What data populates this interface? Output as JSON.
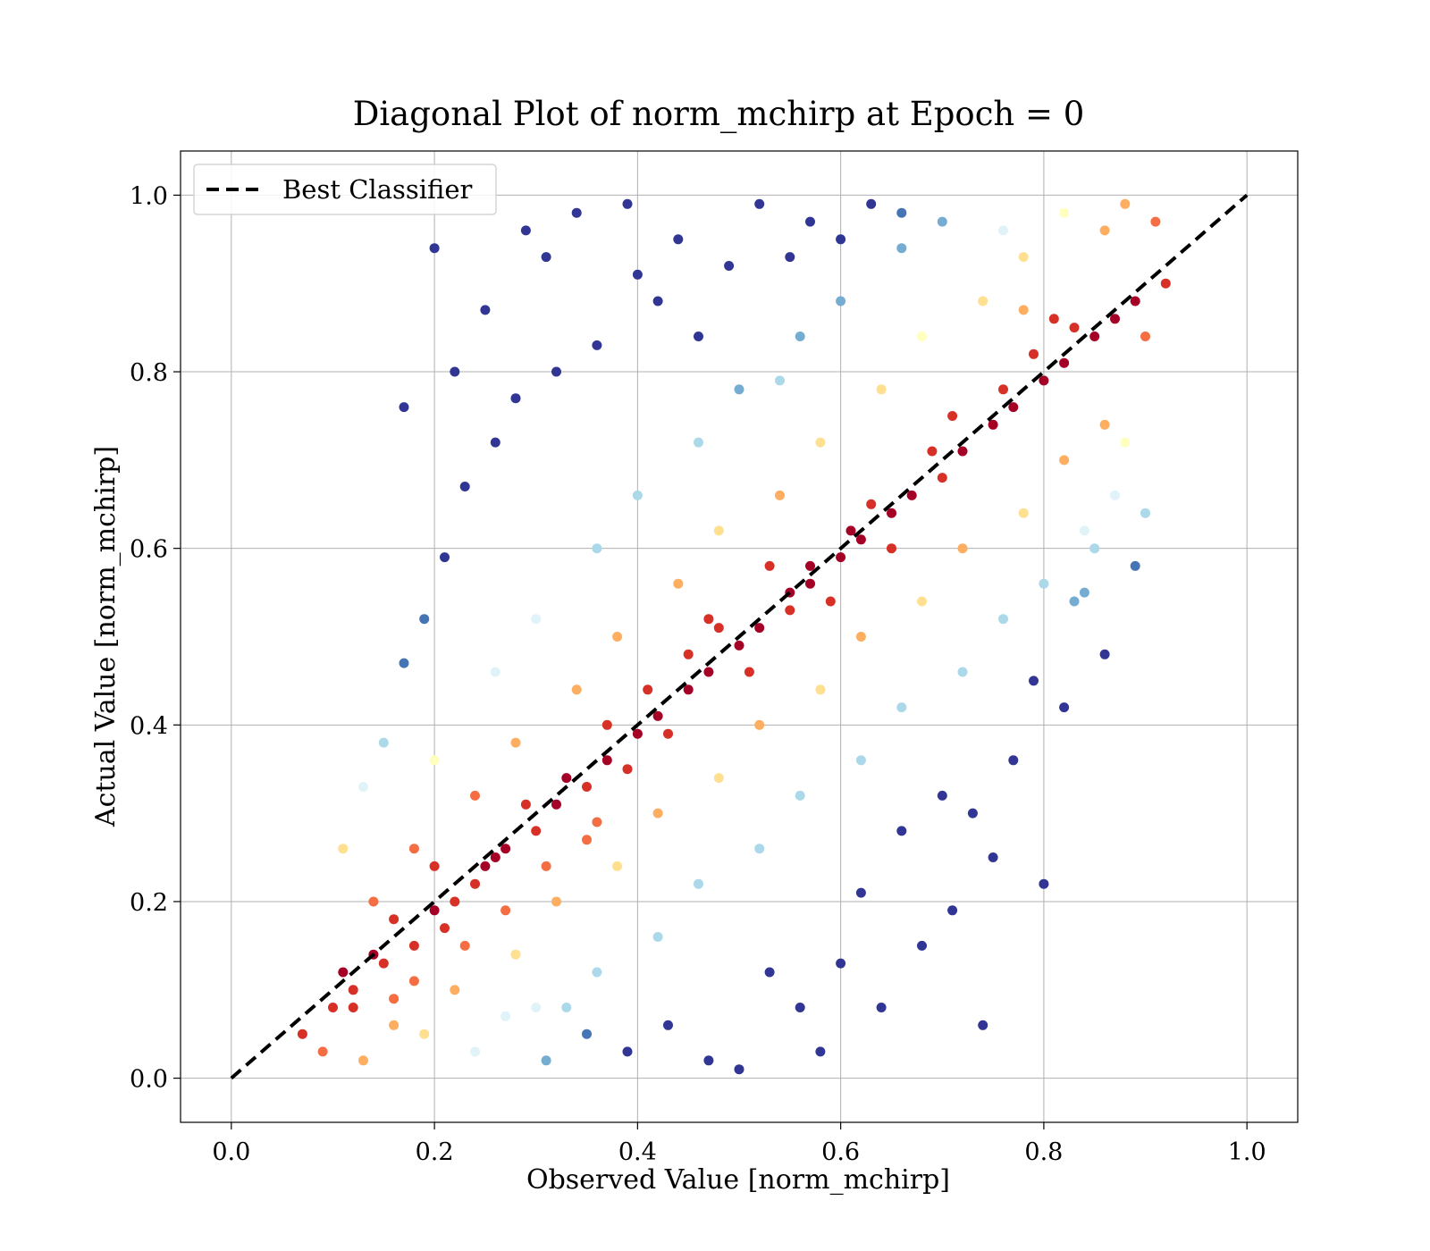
{
  "chart_data": {
    "type": "scatter",
    "title": "Diagonal Plot of norm_mchirp at Epoch = 0",
    "xlabel": "Observed Value [norm_mchirp]",
    "ylabel": "Actual Value [norm_mchirp]",
    "xlim": [
      -0.05,
      1.05
    ],
    "ylim": [
      -0.05,
      1.05
    ],
    "x_ticks": [
      "0.0",
      "0.2",
      "0.4",
      "0.6",
      "0.8",
      "1.0"
    ],
    "y_ticks": [
      "0.0",
      "0.2",
      "0.4",
      "0.6",
      "0.8",
      "1.0"
    ],
    "x_tick_values": [
      0.0,
      0.2,
      0.4,
      0.6,
      0.8,
      1.0
    ],
    "y_tick_values": [
      0.0,
      0.2,
      0.4,
      0.6,
      0.8,
      1.0
    ],
    "grid": true,
    "legend": {
      "position": "top-left",
      "entries": [
        "Best Classifier"
      ]
    },
    "reference_line": {
      "name": "Best Classifier",
      "style": "dashed",
      "color": "#000000",
      "x": [
        0.0,
        1.0
      ],
      "y": [
        0.0,
        1.0
      ]
    },
    "colormap": [
      "#313695",
      "#4575b4",
      "#74add1",
      "#abd9e9",
      "#e0f3f8",
      "#ffffbf",
      "#fee090",
      "#fdae61",
      "#f46d43",
      "#d73027",
      "#a50026"
    ],
    "series": [
      {
        "points": [
          [
            0.1,
            0.08
          ],
          [
            0.12,
            0.1
          ],
          [
            0.15,
            0.13
          ],
          [
            0.18,
            0.15
          ],
          [
            0.2,
            0.19
          ],
          [
            0.22,
            0.2
          ],
          [
            0.25,
            0.24
          ],
          [
            0.27,
            0.26
          ],
          [
            0.3,
            0.28
          ],
          [
            0.32,
            0.31
          ],
          [
            0.35,
            0.33
          ],
          [
            0.37,
            0.36
          ],
          [
            0.4,
            0.39
          ],
          [
            0.42,
            0.41
          ],
          [
            0.45,
            0.44
          ],
          [
            0.47,
            0.46
          ],
          [
            0.5,
            0.49
          ],
          [
            0.52,
            0.51
          ],
          [
            0.55,
            0.53
          ],
          [
            0.57,
            0.56
          ],
          [
            0.6,
            0.59
          ],
          [
            0.62,
            0.61
          ],
          [
            0.65,
            0.64
          ],
          [
            0.67,
            0.66
          ],
          [
            0.7,
            0.68
          ],
          [
            0.72,
            0.71
          ],
          [
            0.75,
            0.74
          ],
          [
            0.77,
            0.76
          ],
          [
            0.8,
            0.79
          ],
          [
            0.82,
            0.81
          ],
          [
            0.85,
            0.84
          ],
          [
            0.87,
            0.86
          ],
          [
            0.89,
            0.88
          ],
          [
            0.14,
            0.2
          ],
          [
            0.18,
            0.26
          ],
          [
            0.24,
            0.32
          ],
          [
            0.28,
            0.38
          ],
          [
            0.34,
            0.44
          ],
          [
            0.38,
            0.5
          ],
          [
            0.44,
            0.56
          ],
          [
            0.48,
            0.62
          ],
          [
            0.54,
            0.66
          ],
          [
            0.58,
            0.72
          ],
          [
            0.64,
            0.78
          ],
          [
            0.68,
            0.84
          ],
          [
            0.74,
            0.88
          ],
          [
            0.78,
            0.93
          ],
          [
            0.16,
            0.06
          ],
          [
            0.22,
            0.1
          ],
          [
            0.28,
            0.14
          ],
          [
            0.32,
            0.2
          ],
          [
            0.38,
            0.24
          ],
          [
            0.42,
            0.3
          ],
          [
            0.48,
            0.34
          ],
          [
            0.52,
            0.4
          ],
          [
            0.58,
            0.44
          ],
          [
            0.62,
            0.5
          ],
          [
            0.68,
            0.54
          ],
          [
            0.72,
            0.6
          ],
          [
            0.78,
            0.64
          ],
          [
            0.82,
            0.7
          ],
          [
            0.86,
            0.74
          ],
          [
            0.2,
            0.36
          ],
          [
            0.26,
            0.46
          ],
          [
            0.3,
            0.52
          ],
          [
            0.36,
            0.6
          ],
          [
            0.4,
            0.66
          ],
          [
            0.46,
            0.72
          ],
          [
            0.5,
            0.78
          ],
          [
            0.56,
            0.84
          ],
          [
            0.6,
            0.88
          ],
          [
            0.66,
            0.94
          ],
          [
            0.3,
            0.08
          ],
          [
            0.36,
            0.12
          ],
          [
            0.42,
            0.16
          ],
          [
            0.46,
            0.22
          ],
          [
            0.52,
            0.26
          ],
          [
            0.56,
            0.32
          ],
          [
            0.62,
            0.36
          ],
          [
            0.66,
            0.42
          ],
          [
            0.72,
            0.46
          ],
          [
            0.76,
            0.52
          ],
          [
            0.8,
            0.56
          ],
          [
            0.84,
            0.62
          ],
          [
            0.33,
            0.08
          ],
          [
            0.21,
            0.17
          ],
          [
            0.26,
            0.25
          ],
          [
            0.48,
            0.51
          ],
          [
            0.55,
            0.55
          ],
          [
            0.61,
            0.62
          ],
          [
            0.78,
            0.87
          ],
          [
            0.81,
            0.86
          ],
          [
            0.54,
            0.79
          ],
          [
            0.46,
            0.84
          ],
          [
            0.2,
            0.94
          ],
          [
            0.34,
            0.98
          ],
          [
            0.39,
            0.99
          ],
          [
            0.8,
            0.22
          ],
          [
            0.74,
            0.06
          ],
          [
            0.75,
            0.25
          ],
          [
            0.58,
            0.03
          ],
          [
            0.5,
            0.01
          ],
          [
            0.6,
            0.13
          ],
          [
            0.62,
            0.21
          ],
          [
            0.68,
            0.15
          ],
          [
            0.71,
            0.19
          ],
          [
            0.73,
            0.3
          ],
          [
            0.84,
            0.55
          ],
          [
            0.83,
            0.54
          ],
          [
            0.79,
            0.45
          ],
          [
            0.17,
            0.76
          ],
          [
            0.22,
            0.8
          ],
          [
            0.25,
            0.87
          ],
          [
            0.29,
            0.96
          ],
          [
            0.31,
            0.93
          ],
          [
            0.4,
            0.91
          ],
          [
            0.44,
            0.95
          ],
          [
            0.52,
            0.99
          ],
          [
            0.57,
            0.97
          ],
          [
            0.63,
            0.99
          ],
          [
            0.88,
            0.99
          ],
          [
            0.91,
            0.97
          ],
          [
            0.9,
            0.84
          ],
          [
            0.92,
            0.9
          ],
          [
            0.88,
            0.72
          ],
          [
            0.87,
            0.66
          ],
          [
            0.85,
            0.6
          ],
          [
            0.07,
            0.05
          ],
          [
            0.09,
            0.03
          ],
          [
            0.11,
            0.12
          ],
          [
            0.13,
            0.02
          ],
          [
            0.16,
            0.09
          ],
          [
            0.19,
            0.05
          ],
          [
            0.24,
            0.03
          ],
          [
            0.27,
            0.07
          ],
          [
            0.31,
            0.02
          ],
          [
            0.35,
            0.05
          ],
          [
            0.39,
            0.03
          ],
          [
            0.43,
            0.06
          ],
          [
            0.47,
            0.02
          ],
          [
            0.13,
            0.33
          ],
          [
            0.11,
            0.26
          ],
          [
            0.15,
            0.38
          ],
          [
            0.17,
            0.47
          ],
          [
            0.19,
            0.52
          ],
          [
            0.21,
            0.59
          ],
          [
            0.23,
            0.67
          ],
          [
            0.26,
            0.72
          ],
          [
            0.28,
            0.77
          ],
          [
            0.32,
            0.8
          ],
          [
            0.36,
            0.83
          ],
          [
            0.42,
            0.88
          ],
          [
            0.49,
            0.92
          ],
          [
            0.55,
            0.93
          ],
          [
            0.6,
            0.95
          ],
          [
            0.66,
            0.98
          ],
          [
            0.7,
            0.97
          ],
          [
            0.76,
            0.96
          ],
          [
            0.82,
            0.98
          ],
          [
            0.86,
            0.96
          ],
          [
            0.56,
            0.08
          ],
          [
            0.53,
            0.12
          ],
          [
            0.64,
            0.08
          ],
          [
            0.66,
            0.28
          ],
          [
            0.7,
            0.32
          ],
          [
            0.77,
            0.36
          ],
          [
            0.82,
            0.42
          ],
          [
            0.86,
            0.48
          ],
          [
            0.89,
            0.58
          ],
          [
            0.9,
            0.64
          ],
          [
            0.41,
            0.44
          ],
          [
            0.43,
            0.39
          ],
          [
            0.37,
            0.4
          ],
          [
            0.33,
            0.34
          ],
          [
            0.29,
            0.31
          ],
          [
            0.35,
            0.27
          ],
          [
            0.39,
            0.35
          ],
          [
            0.45,
            0.48
          ],
          [
            0.51,
            0.46
          ],
          [
            0.57,
            0.58
          ],
          [
            0.63,
            0.65
          ],
          [
            0.69,
            0.71
          ],
          [
            0.71,
            0.75
          ],
          [
            0.76,
            0.78
          ],
          [
            0.79,
            0.82
          ],
          [
            0.83,
            0.85
          ],
          [
            0.65,
            0.6
          ],
          [
            0.59,
            0.54
          ],
          [
            0.53,
            0.58
          ],
          [
            0.47,
            0.52
          ],
          [
            0.24,
            0.22
          ],
          [
            0.2,
            0.24
          ],
          [
            0.16,
            0.18
          ],
          [
            0.14,
            0.14
          ],
          [
            0.12,
            0.08
          ],
          [
            0.18,
            0.11
          ],
          [
            0.23,
            0.15
          ],
          [
            0.27,
            0.19
          ],
          [
            0.31,
            0.24
          ],
          [
            0.36,
            0.29
          ]
        ]
      }
    ]
  }
}
